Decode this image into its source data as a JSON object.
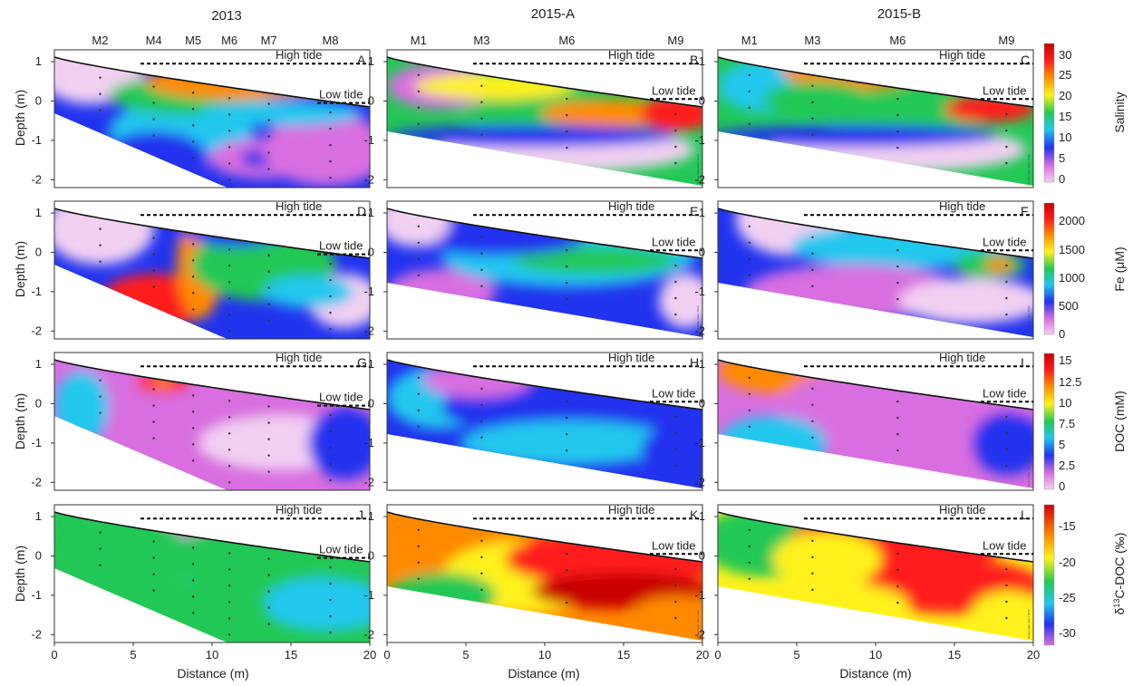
{
  "figure": {
    "columns": [
      "2013",
      "2015-A",
      "2015-B"
    ],
    "x_label": "Distance (m)",
    "y_label": "Depth (m)",
    "x_ticks": [
      "0",
      "5",
      "10",
      "15",
      "20"
    ],
    "y_ticks": [
      "1",
      "0",
      "-1",
      "-2"
    ],
    "high_tide_label": "High tide",
    "low_tide_label": "Low tide",
    "credit": "Ocean Data View / DIVA"
  },
  "chart_data": [
    {
      "type": "heatmap",
      "panel": "A",
      "row_variable": "Salinity",
      "column": "2013",
      "x_range": [
        0,
        20
      ],
      "y_range": [
        -2.2,
        1.3
      ],
      "wells": [
        {
          "name": "M2",
          "x": 2.9
        },
        {
          "name": "M4",
          "x": 6.3
        },
        {
          "name": "M5",
          "x": 8.8
        },
        {
          "name": "M6",
          "x": 11.1
        },
        {
          "name": "M7",
          "x": 13.6
        },
        {
          "name": "M8",
          "x": 17.5
        }
      ],
      "high_tide_depth": 0.95,
      "low_tide_depth": -0.05
    },
    {
      "type": "heatmap",
      "panel": "B",
      "row_variable": "Salinity",
      "column": "2015-A",
      "x_range": [
        0,
        20
      ],
      "y_range": [
        -2.2,
        1.3
      ],
      "wells": [
        {
          "name": "M1",
          "x": 2.0
        },
        {
          "name": "M3",
          "x": 6.0
        },
        {
          "name": "M6",
          "x": 11.4
        },
        {
          "name": "M9",
          "x": 18.3
        }
      ],
      "high_tide_depth": 0.95,
      "low_tide_depth": 0.05
    },
    {
      "type": "heatmap",
      "panel": "C",
      "row_variable": "Salinity",
      "column": "2015-B",
      "x_range": [
        0,
        20
      ],
      "y_range": [
        -2.2,
        1.3
      ],
      "wells": [
        {
          "name": "M1",
          "x": 2.0
        },
        {
          "name": "M3",
          "x": 6.0
        },
        {
          "name": "M6",
          "x": 11.4
        },
        {
          "name": "M9",
          "x": 18.3
        }
      ],
      "high_tide_depth": 0.95,
      "low_tide_depth": 0.05
    },
    {
      "type": "heatmap",
      "panel": "D",
      "row_variable": "Fe (μM)",
      "column": "2013",
      "x_range": [
        0,
        20
      ],
      "y_range": [
        -2.2,
        1.3
      ]
    },
    {
      "type": "heatmap",
      "panel": "E",
      "row_variable": "Fe (μM)",
      "column": "2015-A",
      "x_range": [
        0,
        20
      ],
      "y_range": [
        -2.2,
        1.3
      ]
    },
    {
      "type": "heatmap",
      "panel": "F",
      "row_variable": "Fe (μM)",
      "column": "2015-B",
      "x_range": [
        0,
        20
      ],
      "y_range": [
        -2.2,
        1.3
      ]
    },
    {
      "type": "heatmap",
      "panel": "G",
      "row_variable": "DOC (mM)",
      "column": "2013",
      "x_range": [
        0,
        20
      ],
      "y_range": [
        -2.2,
        1.3
      ]
    },
    {
      "type": "heatmap",
      "panel": "H",
      "row_variable": "DOC (mM)",
      "column": "2015-A",
      "x_range": [
        0,
        20
      ],
      "y_range": [
        -2.2,
        1.3
      ]
    },
    {
      "type": "heatmap",
      "panel": "I",
      "row_variable": "DOC (mM)",
      "column": "2015-B",
      "x_range": [
        0,
        20
      ],
      "y_range": [
        -2.2,
        1.3
      ]
    },
    {
      "type": "heatmap",
      "panel": "J",
      "row_variable": "δ13C-DOC (‰)",
      "column": "2013",
      "x_range": [
        0,
        20
      ],
      "y_range": [
        -2.2,
        1.3
      ]
    },
    {
      "type": "heatmap",
      "panel": "K",
      "row_variable": "δ13C-DOC (‰)",
      "column": "2015-A",
      "x_range": [
        0,
        20
      ],
      "y_range": [
        -2.2,
        1.3
      ]
    },
    {
      "type": "heatmap",
      "panel": "L",
      "row_variable": "δ13C-DOC (‰)",
      "column": "2015-B",
      "x_range": [
        0,
        20
      ],
      "y_range": [
        -2.2,
        1.3
      ]
    }
  ],
  "colorbars": [
    {
      "label": "Salinity",
      "ticks": [
        "30",
        "25",
        "20",
        "15",
        "10",
        "5",
        "0"
      ],
      "range": [
        0,
        32
      ]
    },
    {
      "label": "Fe (μM)",
      "ticks": [
        "2000",
        "1500",
        "1000",
        "500",
        "0"
      ],
      "range": [
        0,
        2300
      ]
    },
    {
      "label": "DOC (mM)",
      "ticks": [
        "15",
        "12.5",
        "10",
        "7.5",
        "5",
        "2.5",
        "0"
      ],
      "range": [
        0,
        16
      ]
    },
    {
      "label_main": "δ",
      "label_sup": "13",
      "label_rest": "C-DOC (‰)",
      "ticks": [
        "-15",
        "-20",
        "-25",
        "-30"
      ],
      "range": [
        -33,
        -13
      ]
    }
  ],
  "colors": {
    "scale": [
      "#f2d0f2",
      "#d86ee0",
      "#2233ee",
      "#22c7ee",
      "#22c855",
      "#fff21a",
      "#ff8a00",
      "#ff1a1a",
      "#c80000"
    ]
  }
}
